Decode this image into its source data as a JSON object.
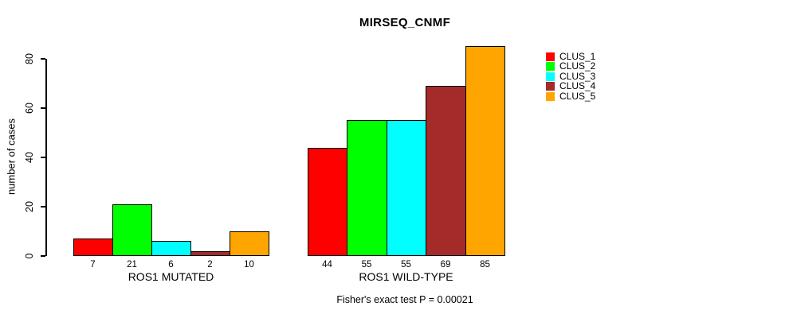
{
  "chart_data": {
    "type": "bar",
    "title": "MIRSEQ_CNMF",
    "ylabel": "number of cases",
    "xlabel": "",
    "caption": "Fisher's exact test P = 0.00021",
    "categories": [
      "ROS1 MUTATED",
      "ROS1 WILD-TYPE"
    ],
    "series": [
      {
        "name": "CLUS_1",
        "color": "#FF0000",
        "values": [
          7,
          44
        ]
      },
      {
        "name": "CLUS_2",
        "color": "#00FF00",
        "values": [
          21,
          55
        ]
      },
      {
        "name": "CLUS_3",
        "color": "#00FFFF",
        "values": [
          6,
          55
        ]
      },
      {
        "name": "CLUS_4",
        "color": "#A52A2A",
        "values": [
          2,
          69
        ]
      },
      {
        "name": "CLUS_5",
        "color": "#FFA500",
        "values": [
          10,
          85
        ]
      }
    ],
    "bar_value_labels": [
      [
        "7",
        "21",
        "6",
        "2",
        "10"
      ],
      [
        "44",
        "55",
        "55",
        "69",
        "85"
      ]
    ],
    "yticks": [
      "0",
      "20",
      "40",
      "60",
      "80"
    ],
    "ylim": [
      0,
      85
    ],
    "grid": false,
    "legend_position": "right",
    "legend": [
      "CLUS_1",
      "CLUS_2",
      "CLUS_3",
      "CLUS_4",
      "CLUS_5"
    ],
    "axis_color": "#000000",
    "bar_border_color": "#000000"
  }
}
